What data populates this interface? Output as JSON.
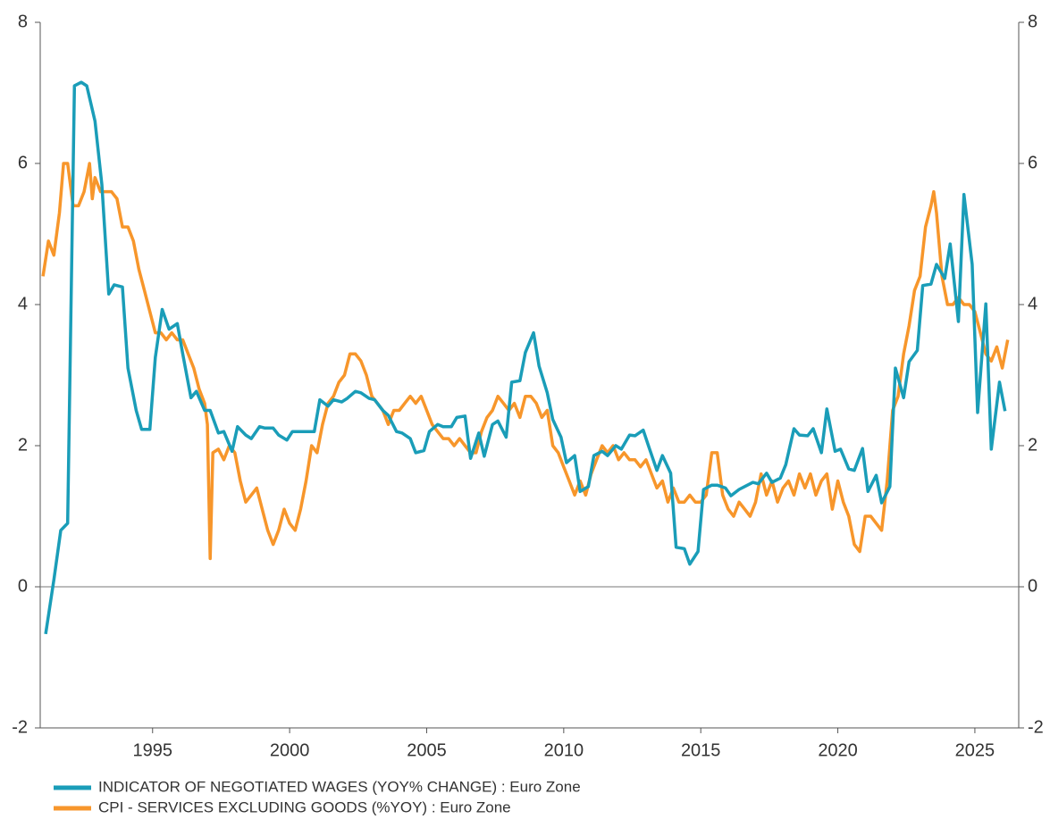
{
  "chart_data": {
    "type": "line",
    "xlim": [
      1990.9,
      2026.6
    ],
    "xticks": [
      1995,
      2000,
      2005,
      2010,
      2015,
      2020,
      2025
    ],
    "ylim": [
      -2,
      8
    ],
    "yticks": [
      -2,
      0,
      2,
      4,
      6,
      8
    ],
    "y2lim": [
      -2,
      8
    ],
    "y2ticks": [
      -2,
      0,
      2,
      4,
      6,
      8
    ],
    "legend": "bottom-left",
    "series": [
      {
        "name": "INDICATOR OF NEGOTIATED WAGES (YOY% CHANGE) : Euro Zone",
        "color": "#1a9db8",
        "x": [
          1991.1,
          1991.4,
          1991.65,
          1991.9,
          1992.15,
          1992.4,
          1992.6,
          1992.9,
          1993.15,
          1993.4,
          1993.6,
          1993.9,
          1994.1,
          1994.4,
          1994.6,
          1994.9,
          1995.1,
          1995.35,
          1995.6,
          1995.9,
          1996.1,
          1996.4,
          1996.6,
          1996.9,
          1997.1,
          1997.4,
          1997.6,
          1997.9,
          1998.1,
          1998.4,
          1998.6,
          1998.9,
          1999.1,
          1999.4,
          1999.6,
          1999.9,
          2000.1,
          2000.4,
          2000.6,
          2000.9,
          2001.1,
          2001.4,
          2001.6,
          2001.9,
          2002.1,
          2002.4,
          2002.6,
          2002.9,
          2003.1,
          2003.4,
          2003.6,
          2003.9,
          2004.1,
          2004.4,
          2004.6,
          2004.9,
          2005.1,
          2005.4,
          2005.6,
          2005.9,
          2006.1,
          2006.4,
          2006.6,
          2006.9,
          2007.1,
          2007.4,
          2007.6,
          2007.9,
          2008.1,
          2008.4,
          2008.6,
          2008.9,
          2009.1,
          2009.4,
          2009.6,
          2009.9,
          2010.1,
          2010.4,
          2010.6,
          2010.9,
          2011.1,
          2011.4,
          2011.6,
          2011.9,
          2012.1,
          2012.4,
          2012.6,
          2012.9,
          2013.1,
          2013.4,
          2013.6,
          2013.9,
          2014.1,
          2014.4,
          2014.6,
          2014.9,
          2015.1,
          2015.4,
          2015.6,
          2015.9,
          2016.1,
          2016.4,
          2016.6,
          2016.9,
          2017.1,
          2017.4,
          2017.6,
          2017.9,
          2018.1,
          2018.4,
          2018.6,
          2018.9,
          2019.1,
          2019.4,
          2019.6,
          2019.9,
          2020.1,
          2020.4,
          2020.6,
          2020.9,
          2021.1,
          2021.4,
          2021.6,
          2021.9,
          2022.1,
          2022.4,
          2022.6,
          2022.9,
          2023.1,
          2023.4,
          2023.6,
          2023.9,
          2024.1,
          2024.4,
          2024.6,
          2024.9,
          2025.1,
          2025.4,
          2025.6,
          2025.9,
          2026.1
        ],
        "values": [
          -0.67,
          0.1,
          0.8,
          0.9,
          7.1,
          7.15,
          7.1,
          6.6,
          5.7,
          4.15,
          4.28,
          4.25,
          3.1,
          2.5,
          2.23,
          2.23,
          3.25,
          3.93,
          3.65,
          3.73,
          3.3,
          2.68,
          2.77,
          2.5,
          2.5,
          2.18,
          2.2,
          1.92,
          2.27,
          2.15,
          2.1,
          2.27,
          2.25,
          2.25,
          2.15,
          2.08,
          2.2,
          2.2,
          2.2,
          2.2,
          2.65,
          2.56,
          2.65,
          2.62,
          2.67,
          2.77,
          2.75,
          2.67,
          2.65,
          2.5,
          2.43,
          2.2,
          2.18,
          2.1,
          1.9,
          1.93,
          2.2,
          2.3,
          2.27,
          2.27,
          2.4,
          2.42,
          1.82,
          2.18,
          1.85,
          2.3,
          2.35,
          2.12,
          2.9,
          2.92,
          3.32,
          3.6,
          3.13,
          2.75,
          2.37,
          2.12,
          1.76,
          1.86,
          1.35,
          1.42,
          1.86,
          1.92,
          1.86,
          2.0,
          1.95,
          2.15,
          2.14,
          2.22,
          1.99,
          1.65,
          1.86,
          1.61,
          0.56,
          0.54,
          0.32,
          0.5,
          1.38,
          1.44,
          1.44,
          1.4,
          1.29,
          1.38,
          1.42,
          1.48,
          1.46,
          1.61,
          1.48,
          1.54,
          1.73,
          2.24,
          2.15,
          2.14,
          2.24,
          1.9,
          2.52,
          1.92,
          1.95,
          1.67,
          1.65,
          1.96,
          1.35,
          1.58,
          1.19,
          1.42,
          3.1,
          2.68,
          3.19,
          3.35,
          4.27,
          4.29,
          4.57,
          4.37,
          4.86,
          3.76,
          5.56,
          4.57,
          2.47,
          4.01,
          1.95,
          2.9,
          2.49
        ]
      },
      {
        "name": "CPI - SERVICES EXCLUDING GOODS (%YOY) : Euro Zone",
        "color": "#f7962b",
        "axis": "y2",
        "x": [
          1991.0,
          1991.2,
          1991.4,
          1991.6,
          1991.75,
          1991.9,
          1992.1,
          1992.3,
          1992.5,
          1992.7,
          1992.8,
          1992.9,
          1993.1,
          1993.3,
          1993.5,
          1993.7,
          1993.9,
          1994.1,
          1994.3,
          1994.5,
          1994.7,
          1994.9,
          1995.1,
          1995.3,
          1995.5,
          1995.7,
          1995.9,
          1996.1,
          1996.3,
          1996.5,
          1996.7,
          1996.9,
          1997.0,
          1997.1,
          1997.2,
          1997.4,
          1997.6,
          1997.8,
          1998.0,
          1998.2,
          1998.4,
          1998.6,
          1998.8,
          1999.0,
          1999.2,
          1999.4,
          1999.6,
          1999.8,
          2000.0,
          2000.2,
          2000.4,
          2000.6,
          2000.8,
          2001.0,
          2001.2,
          2001.4,
          2001.6,
          2001.8,
          2002.0,
          2002.2,
          2002.4,
          2002.6,
          2002.8,
          2003.0,
          2003.2,
          2003.4,
          2003.6,
          2003.8,
          2004.0,
          2004.2,
          2004.4,
          2004.6,
          2004.8,
          2005.0,
          2005.2,
          2005.4,
          2005.6,
          2005.8,
          2006.0,
          2006.2,
          2006.4,
          2006.6,
          2006.8,
          2007.0,
          2007.2,
          2007.4,
          2007.6,
          2007.8,
          2008.0,
          2008.2,
          2008.4,
          2008.6,
          2008.8,
          2009.0,
          2009.2,
          2009.4,
          2009.6,
          2009.8,
          2010.0,
          2010.2,
          2010.4,
          2010.6,
          2010.8,
          2011.0,
          2011.2,
          2011.4,
          2011.6,
          2011.8,
          2012.0,
          2012.2,
          2012.4,
          2012.6,
          2012.8,
          2013.0,
          2013.2,
          2013.4,
          2013.6,
          2013.8,
          2014.0,
          2014.2,
          2014.4,
          2014.6,
          2014.8,
          2015.0,
          2015.2,
          2015.4,
          2015.6,
          2015.8,
          2016.0,
          2016.2,
          2016.4,
          2016.6,
          2016.8,
          2017.0,
          2017.2,
          2017.4,
          2017.6,
          2017.8,
          2018.0,
          2018.2,
          2018.4,
          2018.6,
          2018.8,
          2019.0,
          2019.2,
          2019.4,
          2019.6,
          2019.8,
          2020.0,
          2020.2,
          2020.4,
          2020.6,
          2020.8,
          2021.0,
          2021.2,
          2021.4,
          2021.6,
          2021.8,
          2022.0,
          2022.2,
          2022.4,
          2022.6,
          2022.8,
          2023.0,
          2023.2,
          2023.4,
          2023.5,
          2023.6,
          2023.8,
          2024.0,
          2024.2,
          2024.4,
          2024.6,
          2024.8,
          2025.0,
          2025.2,
          2025.4,
          2025.6,
          2025.8,
          2026.0,
          2026.2
        ],
        "values": [
          4.4,
          4.9,
          4.7,
          5.3,
          6.0,
          6.0,
          5.4,
          5.4,
          5.6,
          6.0,
          5.5,
          5.8,
          5.6,
          5.6,
          5.6,
          5.5,
          5.1,
          5.1,
          4.9,
          4.5,
          4.2,
          3.9,
          3.6,
          3.6,
          3.5,
          3.6,
          3.5,
          3.5,
          3.3,
          3.1,
          2.8,
          2.6,
          2.3,
          0.4,
          1.9,
          1.95,
          1.8,
          2.0,
          1.9,
          1.5,
          1.2,
          1.3,
          1.4,
          1.1,
          0.8,
          0.6,
          0.8,
          1.1,
          0.9,
          0.8,
          1.1,
          1.5,
          2.0,
          1.9,
          2.3,
          2.6,
          2.7,
          2.9,
          3.0,
          3.3,
          3.3,
          3.2,
          3.0,
          2.7,
          2.6,
          2.5,
          2.3,
          2.5,
          2.5,
          2.6,
          2.7,
          2.6,
          2.7,
          2.5,
          2.3,
          2.2,
          2.1,
          2.1,
          2.0,
          2.1,
          2.0,
          1.9,
          1.9,
          2.2,
          2.4,
          2.5,
          2.7,
          2.6,
          2.5,
          2.6,
          2.4,
          2.7,
          2.7,
          2.6,
          2.4,
          2.5,
          2.0,
          1.9,
          1.7,
          1.5,
          1.3,
          1.5,
          1.3,
          1.6,
          1.8,
          2.0,
          1.9,
          2.0,
          1.8,
          1.9,
          1.8,
          1.8,
          1.7,
          1.8,
          1.6,
          1.4,
          1.5,
          1.2,
          1.4,
          1.2,
          1.2,
          1.3,
          1.2,
          1.2,
          1.3,
          1.9,
          1.9,
          1.3,
          1.1,
          1.0,
          1.2,
          1.1,
          1.0,
          1.2,
          1.6,
          1.3,
          1.5,
          1.2,
          1.4,
          1.5,
          1.3,
          1.6,
          1.4,
          1.6,
          1.3,
          1.5,
          1.6,
          1.1,
          1.5,
          1.2,
          1.0,
          0.6,
          0.5,
          1.0,
          1.0,
          0.9,
          0.8,
          1.5,
          2.5,
          2.7,
          3.3,
          3.7,
          4.2,
          4.4,
          5.1,
          5.4,
          5.6,
          5.3,
          4.4,
          4.0,
          4.0,
          4.1,
          4.0,
          4.0,
          3.9,
          3.6,
          3.3,
          3.2,
          3.4,
          3.1,
          3.5
        ]
      }
    ]
  }
}
